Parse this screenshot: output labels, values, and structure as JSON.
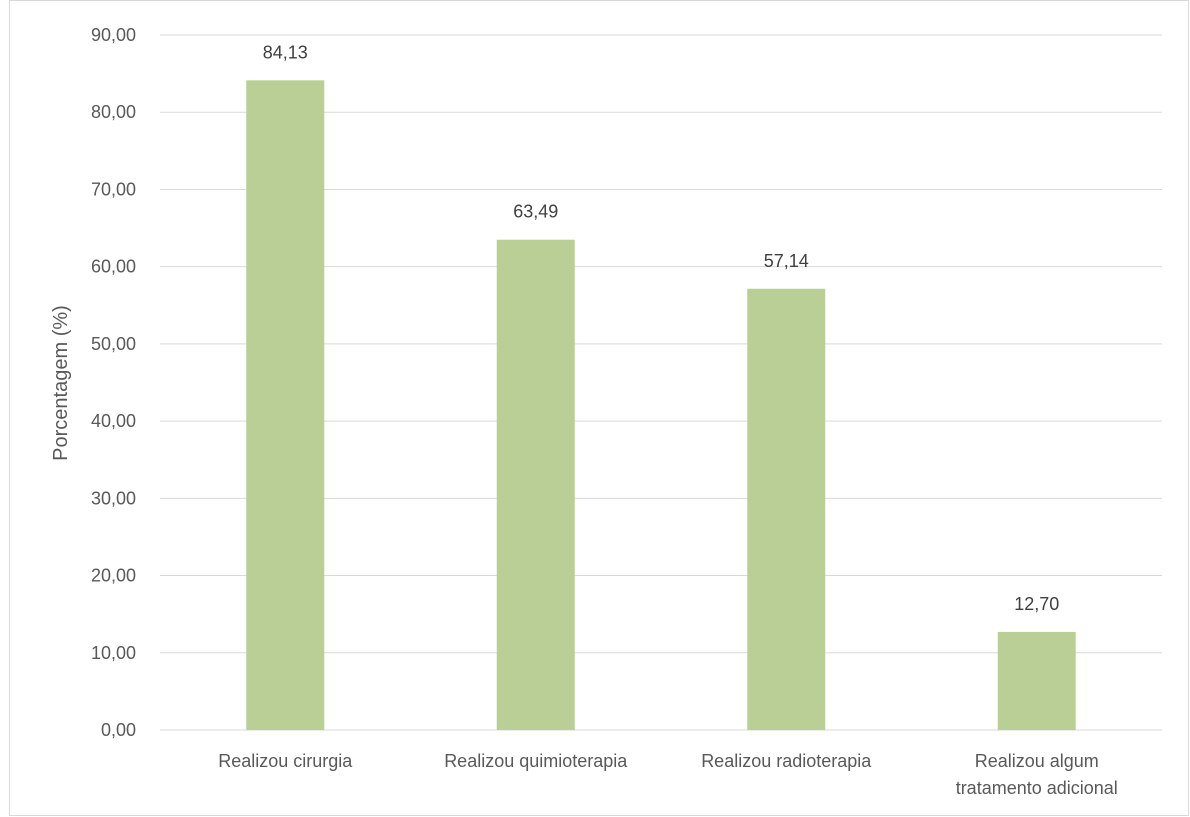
{
  "chart_data": {
    "type": "bar",
    "title": "",
    "xlabel": "",
    "ylabel": "Porcentagem (%)",
    "categories": [
      "Realizou cirurgia",
      "Realizou quimioterapia",
      "Realizou radioterapia",
      "Realizou algum tratamento adicional"
    ],
    "category_lines": [
      [
        "Realizou cirurgia"
      ],
      [
        "Realizou quimioterapia"
      ],
      [
        "Realizou radioterapia"
      ],
      [
        "Realizou algum",
        "tratamento adicional"
      ]
    ],
    "values": [
      84.13,
      63.49,
      57.14,
      12.7
    ],
    "data_labels": [
      "84,13",
      "63,49",
      "57,14",
      "12,70"
    ],
    "ylim": [
      0,
      90
    ],
    "yticks": [
      0,
      10,
      20,
      30,
      40,
      50,
      60,
      70,
      80,
      90
    ],
    "ytick_labels": [
      "0,00",
      "10,00",
      "20,00",
      "30,00",
      "40,00",
      "50,00",
      "60,00",
      "70,00",
      "80,00",
      "90,00"
    ],
    "grid": true,
    "legend": "none",
    "colors": {
      "bar": "#b9cf95",
      "grid": "#d9d9d9",
      "text": "#595959"
    }
  }
}
